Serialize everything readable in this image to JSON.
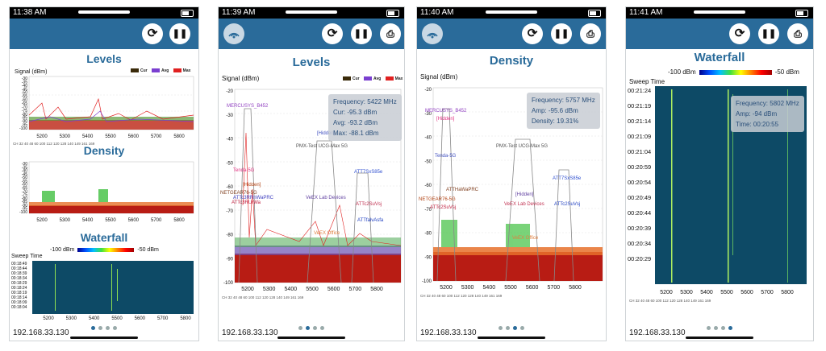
{
  "screens": [
    {
      "time": "11:38 AM",
      "titles": {
        "levels": "Levels",
        "density": "Density",
        "waterfall": "Waterfall"
      },
      "signal_label": "Signal (dBm)",
      "levels_yticks": [
        "-30",
        "-35",
        "-40",
        "-45",
        "-50",
        "-55",
        "-60",
        "-65",
        "-70",
        "-75",
        "-80",
        "-85",
        "-90",
        "-95",
        "-100"
      ],
      "density_yticks": [
        "-30",
        "-35",
        "-40",
        "-45",
        "-50",
        "-55",
        "-60",
        "-65",
        "-70",
        "-75",
        "-80",
        "-85",
        "-90",
        "-95",
        "-100"
      ],
      "legend": [
        "Cur",
        "Avg",
        "Max"
      ],
      "xticks": [
        "5200",
        "5300",
        "5400",
        "5500",
        "5600",
        "5700",
        "5800"
      ],
      "channels": "CH 32 40 48 60        100 112 120 128 140 149 161 169",
      "scale_min": "-100 dBm",
      "scale_max": "-50 dBm",
      "sweep_label": "Sweep Time",
      "sweep_times": [
        "00:18:49",
        "00:18:44",
        "00:18:39",
        "00:18:34",
        "00:18:29",
        "00:18:24",
        "00:18:19",
        "00:18:14",
        "00:18:09",
        "00:18:04"
      ],
      "ip": "192.168.33.130"
    },
    {
      "time": "11:39 AM",
      "title": "Levels",
      "signal_label": "Signal (dBm)",
      "yticks": [
        "-20",
        "-30",
        "-40",
        "-50",
        "-60",
        "-70",
        "-80",
        "-90",
        "-100"
      ],
      "legend": [
        "Cur",
        "Avg",
        "Max"
      ],
      "xticks": [
        "5200",
        "5300",
        "5400",
        "5500",
        "5600",
        "5700",
        "5800"
      ],
      "channels": "CH 32 40 48 60        100 112 120 128 140 149 161 169",
      "info": [
        "Frequency: 5422 MHz",
        "Cur: -95.3 dBm",
        "Avg: -93.2 dBm",
        "Max: -88.1 dBm"
      ],
      "networks": [
        "MERCUSYS_B452",
        "Tenda-5G",
        "[Hidden]",
        "PMX-Test UCG-Max 5G",
        "ATT7SxS85e",
        "NETGEAR76-5G",
        "[Hidden]",
        "ATTc3RUrWa",
        "VeEX Lab Devices",
        "ATTc2SuVsj",
        "ATTfalvAsfa",
        "VeEX Office",
        "ATTc3RRnWaPRC"
      ],
      "ip": "192.168.33.130"
    },
    {
      "time": "11:40 AM",
      "title": "Density",
      "signal_label": "Signal (dBm)",
      "yticks": [
        "-20",
        "-30",
        "-40",
        "-50",
        "-60",
        "-70",
        "-80",
        "-90",
        "-100"
      ],
      "xticks": [
        "5200",
        "5300",
        "5400",
        "5500",
        "5600",
        "5700",
        "5800"
      ],
      "channels": "CH 32 40 48 60        100 112 120 128 140 149 161 169",
      "info": [
        "Frequency: 5757 MHz",
        "Amp: -95.6 dBm",
        "Density: 19.31%"
      ],
      "networks": [
        "MERCUSYS_B452",
        "[Hidden]",
        "Tenda-5G",
        "PMX-Test UCG-Max 5G",
        "ATT7SxS85e",
        "ATTHaWaPRC",
        "NETGEAR76-5G",
        "ATTc2SuVsj",
        "[Hidden]",
        "VeEX Lab Devices",
        "ATTc2SuVsj",
        "VeEX Office"
      ],
      "ip": "192.168.33.130"
    },
    {
      "time": "11:41 AM",
      "title": "Waterfall",
      "scale_min": "-100 dBm",
      "scale_max": "-50 dBm",
      "sweep_label": "Sweep Time",
      "sweep_times": [
        "00:21:24",
        "00:21:19",
        "00:21:14",
        "00:21:09",
        "00:21:04",
        "00:20:59",
        "00:20:54",
        "00:20:49",
        "00:20:44",
        "00:20:39",
        "00:20:34",
        "00:20:29"
      ],
      "info": [
        "Frequency: 5802 MHz",
        "Amp: -94 dBm",
        "Time: 00:20:55"
      ],
      "xticks": [
        "5200",
        "5300",
        "5400",
        "5500",
        "5600",
        "5700",
        "5800"
      ],
      "channels": "CH 32 40 48 60        100 112 120 128 140 149 161 169",
      "ip": "192.168.33.130"
    }
  ],
  "colors": {
    "appbar": "#2a6b9a",
    "cur": "#3a2a0a",
    "avg": "#7a3fd0",
    "max": "#e02020",
    "waterfall_bg": "#0d4a66"
  },
  "icons": {
    "refresh": "refresh-icon",
    "pause": "pause-icon",
    "export": "export-icon",
    "wifi": "wifi-icon"
  }
}
